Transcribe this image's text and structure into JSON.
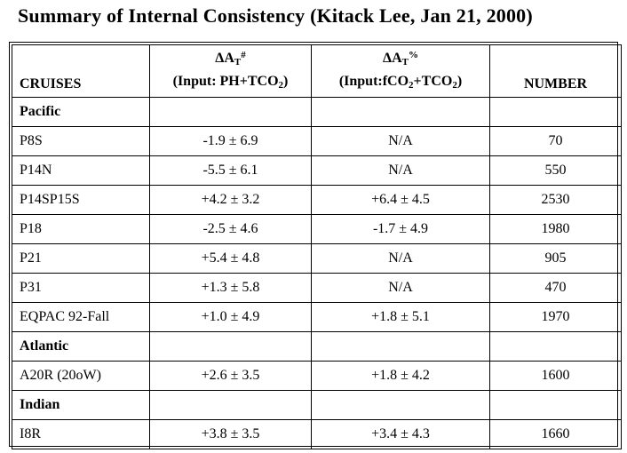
{
  "title": "Summary of Internal Consistency (Kitack Lee, Jan 21, 2000)",
  "table": {
    "header": {
      "cruises": "CRUISES",
      "at_ph": {
        "symbol": "ΔA",
        "symbol_sub": "T",
        "symbol_sup": "#",
        "input_pre": "(Input: PH+TCO",
        "input_sub": "2",
        "input_post": ")"
      },
      "at_fco2": {
        "symbol": "ΔA",
        "symbol_sub": "T",
        "symbol_sup": "%",
        "input_pre": "(Input:fCO",
        "input_sub1": "2",
        "input_mid": "+TCO",
        "input_sub2": "2",
        "input_post": ")"
      },
      "number": "NUMBER"
    },
    "rows": [
      {
        "cruise": "Pacific",
        "at_ph": "",
        "at_fco2": "",
        "number": "",
        "section": true
      },
      {
        "cruise": "P8S",
        "at_ph": "-1.9 ± 6.9",
        "at_fco2": "N/A",
        "number": "70",
        "section": false
      },
      {
        "cruise": "P14N",
        "at_ph": "-5.5 ± 6.1",
        "at_fco2": "N/A",
        "number": "550",
        "section": false
      },
      {
        "cruise": "P14SP15S",
        "at_ph": "+4.2 ± 3.2",
        "at_fco2": "+6.4 ± 4.5",
        "number": "2530",
        "section": false
      },
      {
        "cruise": "P18",
        "at_ph": "-2.5 ± 4.6",
        "at_fco2": "-1.7 ± 4.9",
        "number": "1980",
        "section": false
      },
      {
        "cruise": "P21",
        "at_ph": "+5.4 ± 4.8",
        "at_fco2": "N/A",
        "number": "905",
        "section": false
      },
      {
        "cruise": "P31",
        "at_ph": "+1.3 ± 5.8",
        "at_fco2": "N/A",
        "number": "470",
        "section": false
      },
      {
        "cruise": "EQPAC 92-Fall",
        "at_ph": "+1.0 ± 4.9",
        "at_fco2": "+1.8 ± 5.1",
        "number": "1970",
        "section": false
      },
      {
        "cruise": "Atlantic",
        "at_ph": "",
        "at_fco2": "",
        "number": "",
        "section": true
      },
      {
        "cruise": "A20R (20oW)",
        "at_ph": "+2.6 ± 3.5",
        "at_fco2": "+1.8 ± 4.2",
        "number": "1600",
        "section": false
      },
      {
        "cruise": "Indian",
        "at_ph": "",
        "at_fco2": "",
        "number": "",
        "section": true
      },
      {
        "cruise": "I8R",
        "at_ph": "+3.8 ± 3.5",
        "at_fco2": "+3.4 ± 4.3",
        "number": "1660",
        "section": false
      }
    ]
  }
}
